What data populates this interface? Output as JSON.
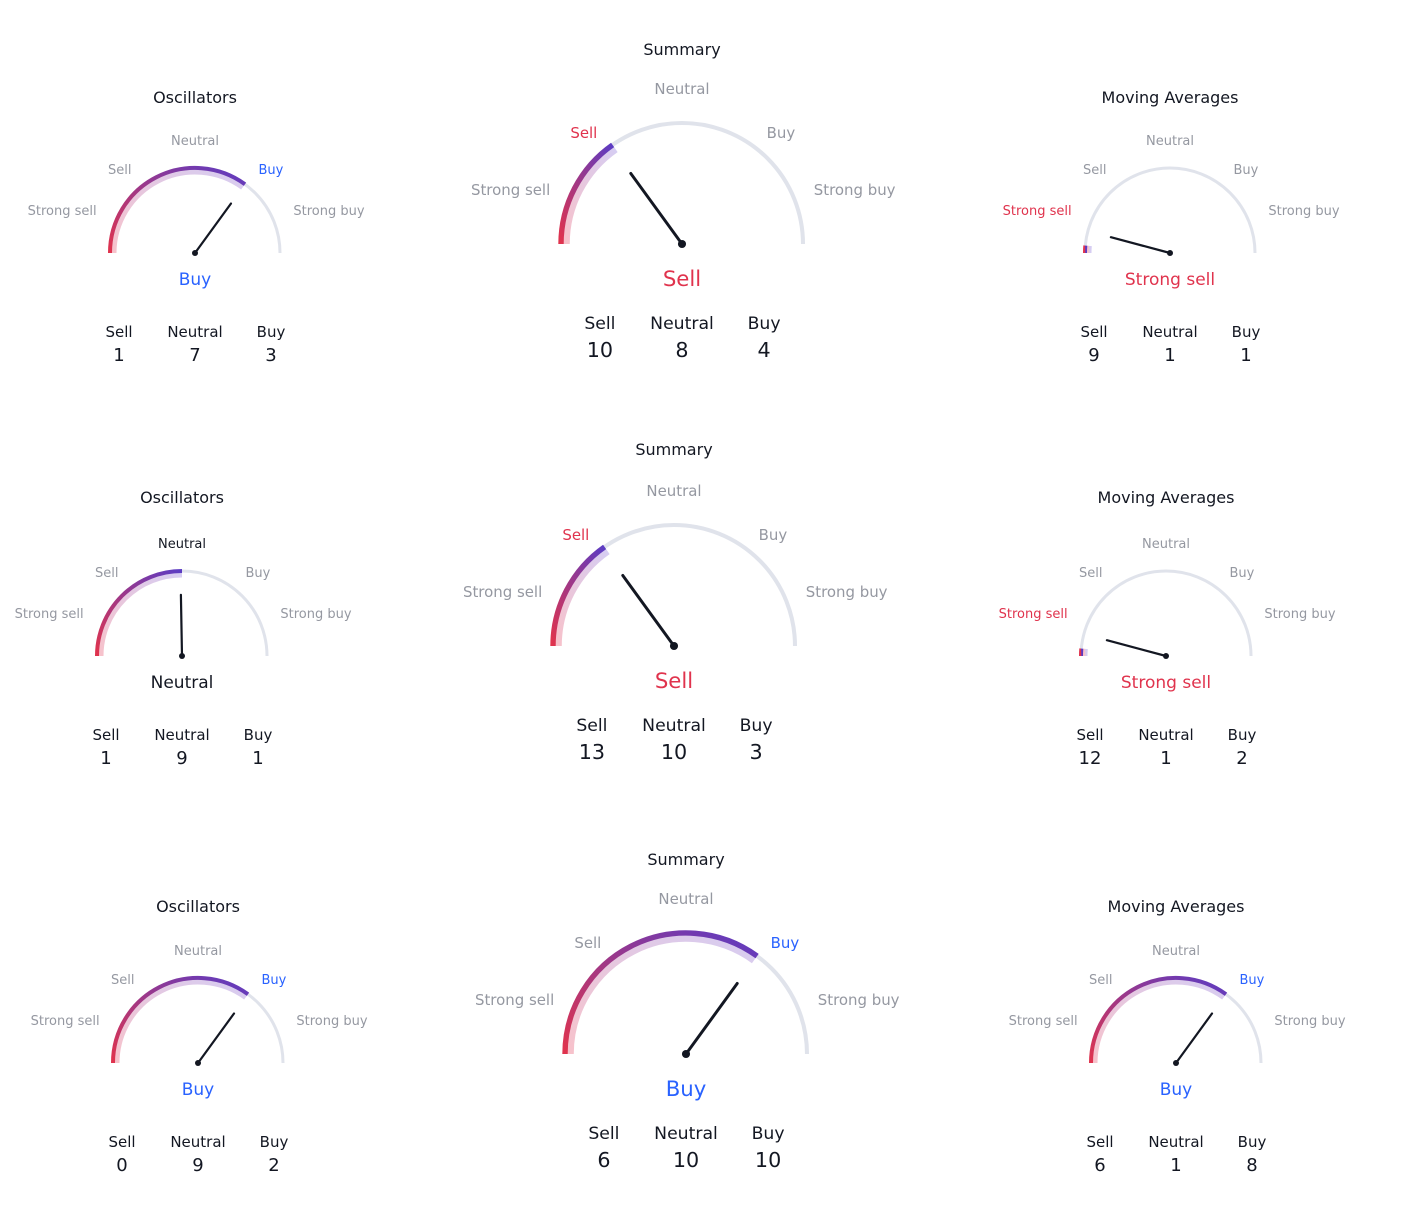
{
  "colors": {
    "sell": "#e0334d",
    "buy": "#2962ff",
    "muted": "#9598a1",
    "track": "#e0e3eb",
    "needle": "#131722",
    "neutral_text": "#131722"
  },
  "gauges": [
    {
      "id": "row1-oscillators",
      "title": "Oscillators",
      "labels": {
        "strong_sell": "Strong sell",
        "sell": "Sell",
        "neutral": "Neutral",
        "buy": "Buy",
        "strong_buy": "Strong buy"
      },
      "active": "buy",
      "verdict": "Buy",
      "verdict_tone": "buy",
      "counts": {
        "sell_label": "Sell",
        "sell": "1",
        "neutral_label": "Neutral",
        "neutral": "7",
        "buy_label": "Buy",
        "buy": "3"
      }
    },
    {
      "id": "row1-summary",
      "title": "Summary",
      "labels": {
        "strong_sell": "Strong sell",
        "sell": "Sell",
        "neutral": "Neutral",
        "buy": "Buy",
        "strong_buy": "Strong buy"
      },
      "active": "sell",
      "verdict": "Sell",
      "verdict_tone": "sell",
      "counts": {
        "sell_label": "Sell",
        "sell": "10",
        "neutral_label": "Neutral",
        "neutral": "8",
        "buy_label": "Buy",
        "buy": "4"
      }
    },
    {
      "id": "row1-moving-averages",
      "title": "Moving Averages",
      "labels": {
        "strong_sell": "Strong sell",
        "sell": "Sell",
        "neutral": "Neutral",
        "buy": "Buy",
        "strong_buy": "Strong buy"
      },
      "active": "strong_sell",
      "verdict": "Strong sell",
      "verdict_tone": "sell",
      "counts": {
        "sell_label": "Sell",
        "sell": "9",
        "neutral_label": "Neutral",
        "neutral": "1",
        "buy_label": "Buy",
        "buy": "1"
      }
    },
    {
      "id": "row2-oscillators",
      "title": "Oscillators",
      "labels": {
        "strong_sell": "Strong sell",
        "sell": "Sell",
        "neutral": "Neutral",
        "buy": "Buy",
        "strong_buy": "Strong buy"
      },
      "active": "neutral",
      "verdict": "Neutral",
      "verdict_tone": "neutral",
      "counts": {
        "sell_label": "Sell",
        "sell": "1",
        "neutral_label": "Neutral",
        "neutral": "9",
        "buy_label": "Buy",
        "buy": "1"
      }
    },
    {
      "id": "row2-summary",
      "title": "Summary",
      "labels": {
        "strong_sell": "Strong sell",
        "sell": "Sell",
        "neutral": "Neutral",
        "buy": "Buy",
        "strong_buy": "Strong buy"
      },
      "active": "sell",
      "verdict": "Sell",
      "verdict_tone": "sell",
      "counts": {
        "sell_label": "Sell",
        "sell": "13",
        "neutral_label": "Neutral",
        "neutral": "10",
        "buy_label": "Buy",
        "buy": "3"
      }
    },
    {
      "id": "row2-moving-averages",
      "title": "Moving Averages",
      "labels": {
        "strong_sell": "Strong sell",
        "sell": "Sell",
        "neutral": "Neutral",
        "buy": "Buy",
        "strong_buy": "Strong buy"
      },
      "active": "strong_sell",
      "verdict": "Strong sell",
      "verdict_tone": "sell",
      "counts": {
        "sell_label": "Sell",
        "sell": "12",
        "neutral_label": "Neutral",
        "neutral": "1",
        "buy_label": "Buy",
        "buy": "2"
      }
    },
    {
      "id": "row3-oscillators",
      "title": "Oscillators",
      "labels": {
        "strong_sell": "Strong sell",
        "sell": "Sell",
        "neutral": "Neutral",
        "buy": "Buy",
        "strong_buy": "Strong buy"
      },
      "active": "buy",
      "verdict": "Buy",
      "verdict_tone": "buy",
      "counts": {
        "sell_label": "Sell",
        "sell": "0",
        "neutral_label": "Neutral",
        "neutral": "9",
        "buy_label": "Buy",
        "buy": "2"
      }
    },
    {
      "id": "row3-summary",
      "title": "Summary",
      "labels": {
        "strong_sell": "Strong sell",
        "sell": "Sell",
        "neutral": "Neutral",
        "buy": "Buy",
        "strong_buy": "Strong buy"
      },
      "active": "buy",
      "verdict": "Buy",
      "verdict_tone": "buy",
      "counts": {
        "sell_label": "Sell",
        "sell": "6",
        "neutral_label": "Neutral",
        "neutral": "10",
        "buy_label": "Buy",
        "buy": "10"
      }
    },
    {
      "id": "row3-moving-averages",
      "title": "Moving Averages",
      "labels": {
        "strong_sell": "Strong sell",
        "sell": "Sell",
        "neutral": "Neutral",
        "buy": "Buy",
        "strong_buy": "Strong buy"
      },
      "active": "buy",
      "verdict": "Buy",
      "verdict_tone": "buy",
      "counts": {
        "sell_label": "Sell",
        "sell": "6",
        "neutral_label": "Neutral",
        "neutral": "1",
        "buy_label": "Buy",
        "buy": "8"
      }
    }
  ]
}
